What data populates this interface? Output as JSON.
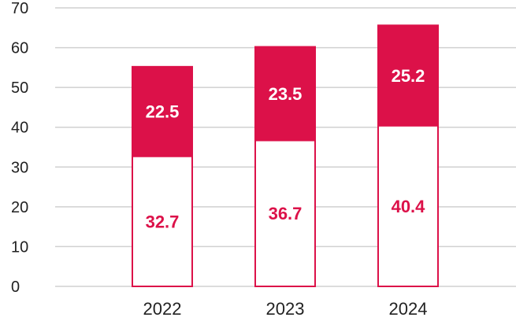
{
  "chart_data": {
    "type": "bar",
    "stacked": true,
    "categories": [
      "2022",
      "2023",
      "2024"
    ],
    "series": [
      {
        "values": [
          32.7,
          36.7,
          40.4
        ],
        "color": "#ffffff",
        "stroke": "#dc1149",
        "label_color": "#dc1149"
      },
      {
        "values": [
          22.5,
          23.5,
          25.2
        ],
        "color": "#dc1149",
        "stroke": "#dc1149",
        "label_color": "#ffffff"
      }
    ],
    "yticks": [
      0,
      10,
      20,
      30,
      40,
      50,
      60,
      70
    ],
    "ylim": [
      0,
      70
    ],
    "grid": true,
    "legend": "none",
    "title": "",
    "xlabel": "",
    "ylabel": ""
  }
}
